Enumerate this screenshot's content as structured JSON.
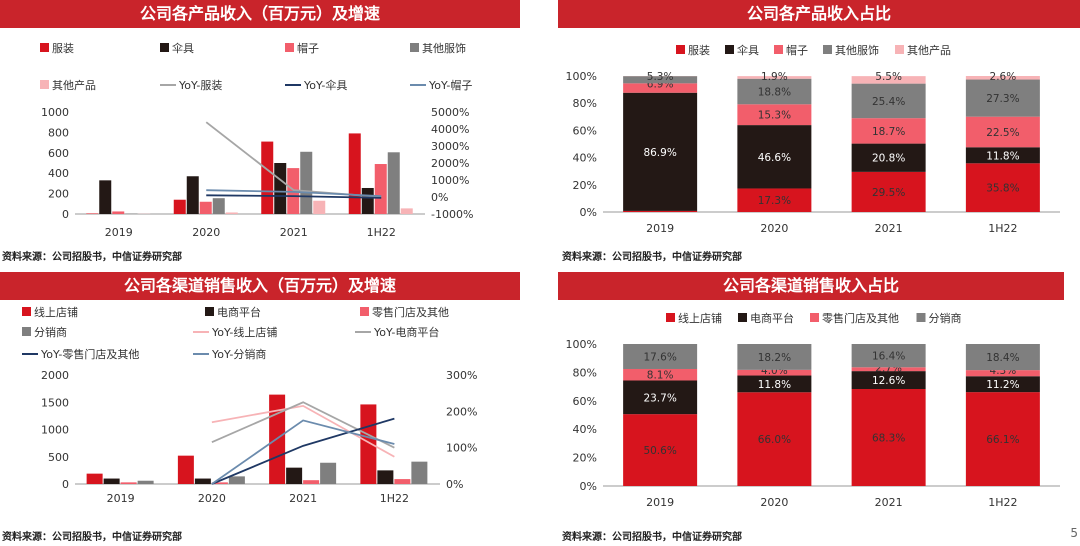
{
  "source_text": "资料来源：公司招股书，中信证券研究部",
  "page_number": "5",
  "colors": {
    "title_bg": "#c9242b",
    "red": "#d7141e",
    "black": "#231815",
    "pink": "#f25e6b",
    "gray": "#7f7f7f",
    "lightpink": "#f7b3b6",
    "line_gray": "#a6a6a6",
    "navy": "#1f3864",
    "steel": "#6b8bad"
  },
  "chart_data": [
    {
      "id": "product-revenue",
      "type": "bar",
      "title": "公司各产品收入（百万元）及增速",
      "categories": [
        "2019",
        "2020",
        "2021",
        "1H22"
      ],
      "ylim": [
        0,
        1000
      ],
      "y_ticks": [
        "0",
        "200",
        "400",
        "600",
        "800",
        "1000"
      ],
      "y2lim": [
        -1000,
        5000
      ],
      "y2_ticks": [
        "-1000%",
        "0%",
        "1000%",
        "2000%",
        "3000%",
        "4000%",
        "5000%"
      ],
      "series": [
        {
          "name": "服装",
          "values": [
            5,
            140,
            710,
            790
          ]
        },
        {
          "name": "伞具",
          "values": [
            330,
            370,
            500,
            255
          ]
        },
        {
          "name": "帽子",
          "values": [
            25,
            120,
            450,
            490
          ]
        },
        {
          "name": "其他服饰",
          "values": [
            5,
            155,
            610,
            605
          ]
        },
        {
          "name": "其他产品",
          "values": [
            2,
            15,
            130,
            55
          ]
        }
      ],
      "line_series": [
        {
          "name": "YoY-服装",
          "values": [
            null,
            4400,
            400,
            0
          ]
        },
        {
          "name": "YoY-伞具",
          "values": [
            null,
            100,
            50,
            -50
          ]
        },
        {
          "name": "YoY-帽子",
          "values": [
            null,
            400,
            300,
            50
          ]
        }
      ],
      "legend_placement": "top"
    },
    {
      "id": "product-share",
      "type": "bar",
      "stacked": true,
      "title": "公司各产品收入占比",
      "categories": [
        "2019",
        "2020",
        "2021",
        "1H22"
      ],
      "ylim": [
        0,
        100
      ],
      "y_ticks": [
        "0%",
        "20%",
        "40%",
        "60%",
        "80%",
        "100%"
      ],
      "series": [
        {
          "name": "服装",
          "values": [
            0.8,
            17.3,
            29.5,
            35.8
          ],
          "labels": [
            "",
            "17.3%",
            "29.5%",
            "35.8%"
          ]
        },
        {
          "name": "伞具",
          "values": [
            86.9,
            46.6,
            20.8,
            11.8
          ],
          "labels": [
            "86.9%",
            "46.6%",
            "20.8%",
            "11.8%"
          ]
        },
        {
          "name": "帽子",
          "values": [
            6.9,
            15.3,
            18.7,
            22.5
          ],
          "labels": [
            "6.9%",
            "15.3%",
            "18.7%",
            "22.5%"
          ]
        },
        {
          "name": "其他服饰",
          "values": [
            5.3,
            18.8,
            25.4,
            27.3
          ],
          "labels": [
            "5.3%",
            "18.8%",
            "25.4%",
            "27.3%"
          ]
        },
        {
          "name": "其他产品",
          "values": [
            0.1,
            1.9,
            5.5,
            2.6
          ],
          "labels": [
            "",
            "1.9%",
            "5.5%",
            "2.6%"
          ]
        }
      ],
      "legend_placement": "top"
    },
    {
      "id": "channel-revenue",
      "type": "bar",
      "title": "公司各渠道销售收入（百万元）及增速",
      "categories": [
        "2019",
        "2020",
        "2021",
        "1H22"
      ],
      "ylim": [
        0,
        2000
      ],
      "y_ticks": [
        "0",
        "500",
        "1000",
        "1500",
        "2000"
      ],
      "y2lim": [
        0,
        300
      ],
      "y2_ticks": [
        "0%",
        "100%",
        "200%",
        "300%"
      ],
      "series": [
        {
          "name": "线上店铺",
          "values": [
            190,
            520,
            1640,
            1460
          ]
        },
        {
          "name": "电商平台",
          "values": [
            100,
            100,
            300,
            250
          ]
        },
        {
          "name": "零售门店及其他",
          "values": [
            30,
            30,
            70,
            90
          ]
        },
        {
          "name": "分销商",
          "values": [
            60,
            140,
            390,
            410
          ]
        }
      ],
      "line_series": [
        {
          "name": "YoY-线上店铺",
          "values": [
            null,
            170,
            215,
            75
          ]
        },
        {
          "name": "YoY-电商平台",
          "values": [
            null,
            115,
            225,
            100
          ]
        },
        {
          "name": "YoY-零售门店及其他",
          "values": [
            null,
            0,
            105,
            180
          ]
        },
        {
          "name": "YoY-分销商",
          "values": [
            null,
            0,
            175,
            110
          ]
        }
      ],
      "legend_placement": "top"
    },
    {
      "id": "channel-share",
      "type": "bar",
      "stacked": true,
      "title": "公司各渠道销售收入占比",
      "categories": [
        "2019",
        "2020",
        "2021",
        "1H22"
      ],
      "ylim": [
        0,
        100
      ],
      "y_ticks": [
        "0%",
        "20%",
        "40%",
        "60%",
        "80%",
        "100%"
      ],
      "series": [
        {
          "name": "线上店铺",
          "values": [
            50.6,
            66.0,
            68.3,
            66.1
          ],
          "labels": [
            "50.6%",
            "66.0%",
            "68.3%",
            "66.1%"
          ]
        },
        {
          "name": "电商平台",
          "values": [
            23.7,
            11.8,
            12.6,
            11.2
          ],
          "labels": [
            "23.7%",
            "11.8%",
            "12.6%",
            "11.2%"
          ]
        },
        {
          "name": "零售门店及其他",
          "values": [
            8.1,
            4.0,
            2.7,
            4.3
          ],
          "labels": [
            "8.1%",
            "4.0%",
            "2.7%",
            "4.3%"
          ]
        },
        {
          "name": "分销商",
          "values": [
            17.6,
            18.2,
            16.4,
            18.4
          ],
          "labels": [
            "17.6%",
            "18.2%",
            "16.4%",
            "18.4%"
          ]
        }
      ],
      "legend_placement": "top"
    }
  ]
}
